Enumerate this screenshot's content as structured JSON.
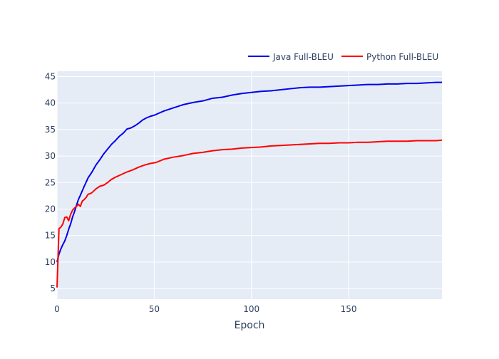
{
  "chart_data": {
    "type": "line",
    "title": "",
    "xlabel": "Epoch",
    "ylabel": "",
    "xlim": [
      0,
      198
    ],
    "ylim": [
      3,
      46
    ],
    "x_ticks": [
      0,
      50,
      100,
      150
    ],
    "y_ticks": [
      5,
      10,
      15,
      20,
      25,
      30,
      35,
      40,
      45
    ],
    "grid": true,
    "legend_position": "top-right",
    "colors": {
      "plot_bg": "#E5ECF6",
      "grid": "#FFFFFF",
      "tick_text": "#2A3F5F"
    },
    "series": [
      {
        "name": "Java Full-BLEU",
        "color": "#0000EE",
        "x": [
          0,
          1,
          2,
          3,
          4,
          5,
          6,
          7,
          8,
          9,
          10,
          11,
          12,
          14,
          16,
          18,
          20,
          22,
          24,
          26,
          28,
          30,
          32,
          34,
          36,
          38,
          40,
          42,
          44,
          46,
          48,
          50,
          55,
          60,
          65,
          70,
          75,
          80,
          85,
          90,
          95,
          100,
          105,
          110,
          115,
          120,
          125,
          130,
          135,
          140,
          145,
          150,
          155,
          160,
          165,
          170,
          175,
          180,
          185,
          190,
          195,
          198
        ],
        "values": [
          10.0,
          11.5,
          12.5,
          13.3,
          14.0,
          15.0,
          16.2,
          17.2,
          18.5,
          19.5,
          20.7,
          21.8,
          22.6,
          24.3,
          25.9,
          27.0,
          28.3,
          29.3,
          30.4,
          31.3,
          32.2,
          32.9,
          33.7,
          34.3,
          35.1,
          35.3,
          35.7,
          36.2,
          36.8,
          37.2,
          37.5,
          37.7,
          38.5,
          39.1,
          39.7,
          40.1,
          40.4,
          40.9,
          41.1,
          41.5,
          41.8,
          42.0,
          42.2,
          42.3,
          42.5,
          42.7,
          42.9,
          43.0,
          43.0,
          43.1,
          43.2,
          43.3,
          43.4,
          43.5,
          43.5,
          43.6,
          43.6,
          43.7,
          43.7,
          43.8,
          43.9,
          43.9
        ]
      },
      {
        "name": "Python Full-BLEU",
        "color": "#FF0000",
        "x": [
          0,
          1,
          2,
          3,
          4,
          5,
          6,
          7,
          8,
          9,
          10,
          11,
          12,
          13,
          14,
          15,
          16,
          17,
          18,
          20,
          22,
          24,
          26,
          28,
          30,
          33,
          36,
          39,
          42,
          45,
          48,
          51,
          55,
          60,
          65,
          70,
          75,
          80,
          85,
          90,
          95,
          100,
          105,
          110,
          115,
          120,
          125,
          130,
          135,
          140,
          145,
          150,
          155,
          160,
          165,
          170,
          175,
          180,
          185,
          190,
          195,
          198
        ],
        "values": [
          5.2,
          16.3,
          16.6,
          17.2,
          18.4,
          18.5,
          17.8,
          19.0,
          19.8,
          20.2,
          20.5,
          20.9,
          20.5,
          21.5,
          21.8,
          22.2,
          22.8,
          22.9,
          23.1,
          23.8,
          24.3,
          24.5,
          25.0,
          25.6,
          26.0,
          26.5,
          27.0,
          27.4,
          27.9,
          28.3,
          28.6,
          28.8,
          29.4,
          29.8,
          30.1,
          30.5,
          30.7,
          31.0,
          31.2,
          31.3,
          31.5,
          31.6,
          31.7,
          31.9,
          32.0,
          32.1,
          32.2,
          32.3,
          32.4,
          32.4,
          32.5,
          32.5,
          32.6,
          32.6,
          32.7,
          32.8,
          32.8,
          32.8,
          32.9,
          32.9,
          32.9,
          33.0
        ]
      }
    ]
  }
}
